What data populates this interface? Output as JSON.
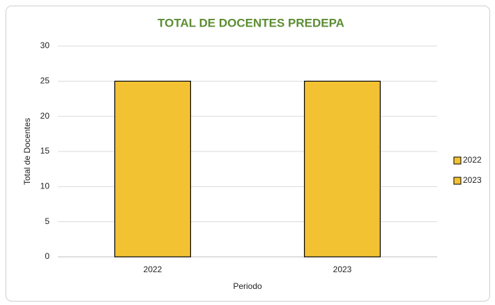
{
  "chart_data": {
    "type": "bar",
    "title": "TOTAL DE DOCENTES PREDEPA",
    "x_label": "Periodo",
    "y_label": "Total de Docentes",
    "categories": [
      "2022",
      "2023"
    ],
    "values": [
      25,
      25
    ],
    "color": "#f2c232",
    "ylim": [
      0,
      30
    ],
    "yticks": [
      0,
      5,
      10,
      15,
      20,
      25,
      30
    ],
    "grid": true,
    "legend": "right"
  }
}
